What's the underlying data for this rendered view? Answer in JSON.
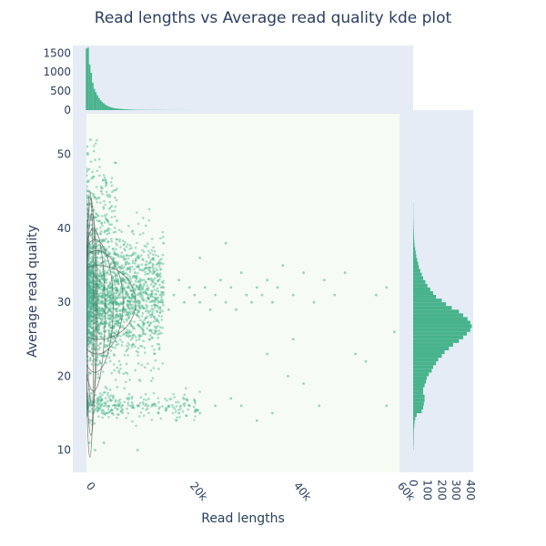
{
  "chart_data": {
    "type": "scatter",
    "title": "Read lengths vs Average read quality kde plot",
    "xlabel": "Read lengths",
    "ylabel": "Average read quality",
    "xlim": [
      -2500,
      60500
    ],
    "ylim": [
      7,
      56
    ],
    "x_ticks": [
      {
        "value": 0,
        "label": "0"
      },
      {
        "value": 20000,
        "label": "20k"
      },
      {
        "value": 40000,
        "label": "40k"
      },
      {
        "value": 60000,
        "label": "60k"
      }
    ],
    "y_ticks": [
      10,
      20,
      30,
      40,
      50
    ],
    "top_hist_ticks": [
      0,
      500,
      1000,
      1500
    ],
    "top_hist_ylim": [
      0,
      1700
    ],
    "right_hist_ticks": [
      0,
      100,
      200,
      300,
      400
    ],
    "right_hist_xlim": [
      0,
      420
    ],
    "colors": {
      "points": "#48b38c",
      "bars": "#48b38c",
      "kde_contour": "#555555",
      "plot_bg": "#f6fcf3",
      "marginal_bg": "#e5ecf6",
      "text": "#2a3f5f"
    },
    "top_histogram": {
      "bin_width": 300,
      "x_start": 0,
      "counts": [
        1620,
        1650,
        1200,
        980,
        720,
        560,
        470,
        390,
        320,
        260,
        220,
        180,
        150,
        120,
        100,
        85,
        70,
        60,
        50,
        44,
        40,
        36,
        32,
        28,
        25,
        23,
        20,
        18,
        16,
        14,
        12,
        11,
        10,
        9,
        8,
        8,
        7,
        7,
        6,
        6,
        5,
        5,
        5,
        4,
        4,
        4,
        3,
        3,
        3,
        3,
        3,
        2,
        2,
        2,
        2,
        2,
        2,
        2,
        2,
        2,
        2,
        1,
        1,
        1,
        1,
        1,
        1,
        1,
        1,
        1
      ]
    },
    "right_histogram": {
      "bin_width": 0.5,
      "y_start": 10,
      "counts": [
        2,
        3,
        3,
        4,
        4,
        5,
        8,
        10,
        15,
        25,
        60,
        70,
        75,
        80,
        80,
        70,
        70,
        80,
        90,
        95,
        110,
        130,
        140,
        160,
        175,
        200,
        220,
        250,
        280,
        320,
        350,
        375,
        400,
        410,
        400,
        380,
        350,
        320,
        270,
        230,
        200,
        160,
        140,
        120,
        100,
        85,
        70,
        60,
        50,
        40,
        35,
        28,
        22,
        18,
        14,
        10,
        8,
        6,
        5,
        4,
        3,
        2,
        2,
        1,
        1,
        1,
        1,
        0,
        0,
        0,
        0,
        0
      ]
    },
    "points": [
      [
        500,
        26
      ],
      [
        800,
        28
      ],
      [
        1200,
        30
      ],
      [
        1500,
        31
      ],
      [
        2000,
        29
      ],
      [
        2500,
        32
      ],
      [
        3000,
        30
      ],
      [
        3500,
        33
      ],
      [
        4000,
        31
      ],
      [
        4500,
        29
      ],
      [
        5000,
        32
      ],
      [
        5500,
        34
      ],
      [
        6000,
        30
      ],
      [
        6500,
        31
      ],
      [
        7000,
        33
      ],
      [
        7500,
        29
      ],
      [
        8000,
        32
      ],
      [
        8500,
        30
      ],
      [
        9000,
        31
      ],
      [
        9500,
        34
      ],
      [
        10000,
        30
      ],
      [
        11000,
        32
      ],
      [
        12000,
        31
      ],
      [
        13000,
        33
      ],
      [
        14000,
        30
      ],
      [
        15000,
        32
      ],
      [
        16000,
        29
      ],
      [
        17000,
        31
      ],
      [
        18000,
        33
      ],
      [
        19000,
        30
      ],
      [
        20000,
        32
      ],
      [
        21000,
        31
      ],
      [
        22000,
        30
      ],
      [
        23000,
        32
      ],
      [
        24000,
        29
      ],
      [
        25000,
        31
      ],
      [
        26000,
        33
      ],
      [
        27000,
        30
      ],
      [
        28000,
        32
      ],
      [
        29000,
        29
      ],
      [
        30000,
        34
      ],
      [
        31000,
        31
      ],
      [
        32000,
        30
      ],
      [
        33000,
        32
      ],
      [
        34000,
        31
      ],
      [
        35000,
        33
      ],
      [
        36000,
        30
      ],
      [
        37000,
        32
      ],
      [
        38000,
        35
      ],
      [
        40000,
        31
      ],
      [
        42000,
        34
      ],
      [
        44000,
        30
      ],
      [
        46000,
        33
      ],
      [
        48000,
        31
      ],
      [
        50000,
        34
      ],
      [
        52000,
        23
      ],
      [
        54000,
        22
      ],
      [
        56000,
        31
      ],
      [
        58000,
        32
      ],
      [
        59500,
        26
      ],
      [
        300,
        15
      ],
      [
        700,
        16
      ],
      [
        1100,
        14
      ],
      [
        2500,
        17
      ],
      [
        4000,
        15
      ],
      [
        6000,
        16
      ],
      [
        8000,
        17
      ],
      [
        10000,
        16
      ],
      [
        12000,
        16
      ],
      [
        14000,
        15
      ],
      [
        16000,
        16
      ],
      [
        18000,
        15
      ],
      [
        20000,
        16
      ],
      [
        22000,
        15
      ],
      [
        25000,
        16
      ],
      [
        28000,
        17
      ],
      [
        30000,
        16
      ],
      [
        33000,
        14
      ],
      [
        36000,
        15
      ],
      [
        40000,
        25
      ],
      [
        45000,
        16
      ],
      [
        58000,
        16
      ],
      [
        1000,
        44
      ],
      [
        1500,
        47
      ],
      [
        2000,
        42
      ],
      [
        3000,
        45
      ],
      [
        4000,
        46
      ],
      [
        5000,
        43
      ],
      [
        6000,
        41
      ],
      [
        400,
        50
      ],
      [
        600,
        48
      ],
      [
        900,
        52
      ],
      [
        1300,
        56
      ],
      [
        700,
        11
      ],
      [
        1800,
        10
      ],
      [
        3500,
        11
      ],
      [
        10000,
        10
      ],
      [
        35000,
        23
      ],
      [
        39000,
        20
      ],
      [
        42000,
        19
      ],
      [
        27000,
        38
      ],
      [
        22000,
        36
      ],
      [
        15000,
        38
      ]
    ],
    "density_band": {
      "x_max": 15000,
      "y_center": 30.5,
      "y_spread": 4.2
    },
    "kde_levels": [
      {
        "cx": 1200,
        "cy": 29,
        "rx": 1000,
        "ry": 13
      },
      {
        "cx": 1500,
        "cy": 29,
        "rx": 2200,
        "ry": 11
      },
      {
        "cx": 1800,
        "cy": 29.5,
        "rx": 3500,
        "ry": 9
      },
      {
        "cx": 2200,
        "cy": 30,
        "rx": 5000,
        "ry": 7
      },
      {
        "cx": 2600,
        "cy": 30,
        "rx": 7000,
        "ry": 5
      },
      {
        "cx": 1000,
        "cy": 28,
        "rx": 900,
        "ry": 16
      },
      {
        "cx": 800,
        "cy": 27,
        "rx": 700,
        "ry": 18
      }
    ]
  }
}
